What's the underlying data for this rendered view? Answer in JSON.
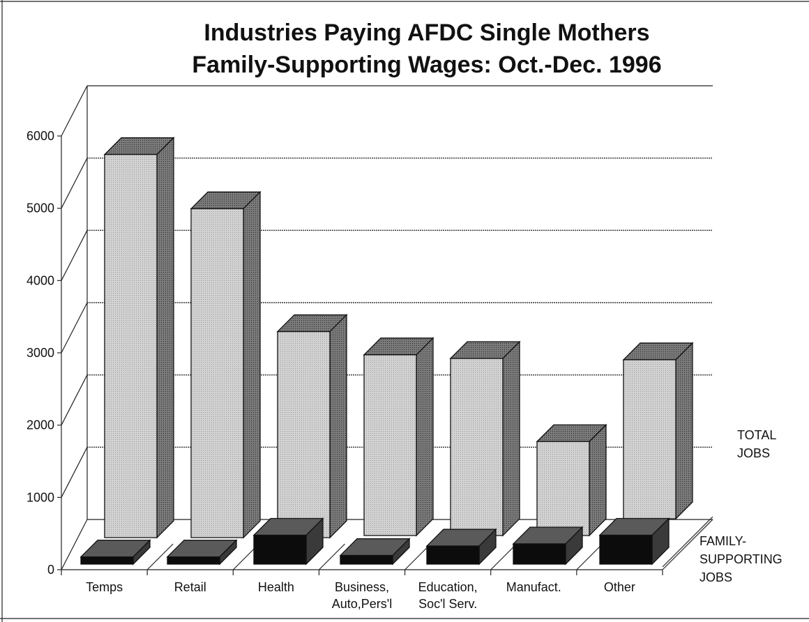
{
  "chart_data": {
    "type": "bar",
    "title": [
      "Industries Paying AFDC Single Mothers",
      "Family-Supporting Wages: Oct.-Dec. 1996"
    ],
    "categories": [
      [
        "Temps"
      ],
      [
        "Retail"
      ],
      [
        "Health"
      ],
      [
        "Business,",
        "Auto,Pers'l"
      ],
      [
        "Education,",
        "Soc'l Serv."
      ],
      [
        "Manufact."
      ],
      [
        "Other"
      ]
    ],
    "series": [
      {
        "name": [
          "TOTAL",
          "JOBS"
        ],
        "values": [
          5300,
          4550,
          2850,
          2500,
          2450,
          1300,
          2200
        ],
        "face_color": "#d2d2d2",
        "top_color": "#7a7a7a",
        "side_color": "#6a6a6a"
      },
      {
        "name": [
          "FAMILY-",
          "SUPPORTING",
          "JOBS"
        ],
        "values": [
          100,
          100,
          400,
          120,
          250,
          280,
          400
        ],
        "face_color": "#0c0c0c",
        "top_color": "#5a5a5a",
        "side_color": "#3a3a3a"
      }
    ],
    "y_ticks": [
      "0",
      "1000",
      "2000",
      "3000",
      "4000",
      "5000",
      "6000"
    ],
    "ylim": [
      0,
      6000
    ],
    "grid": true,
    "view": "3d-bars"
  }
}
